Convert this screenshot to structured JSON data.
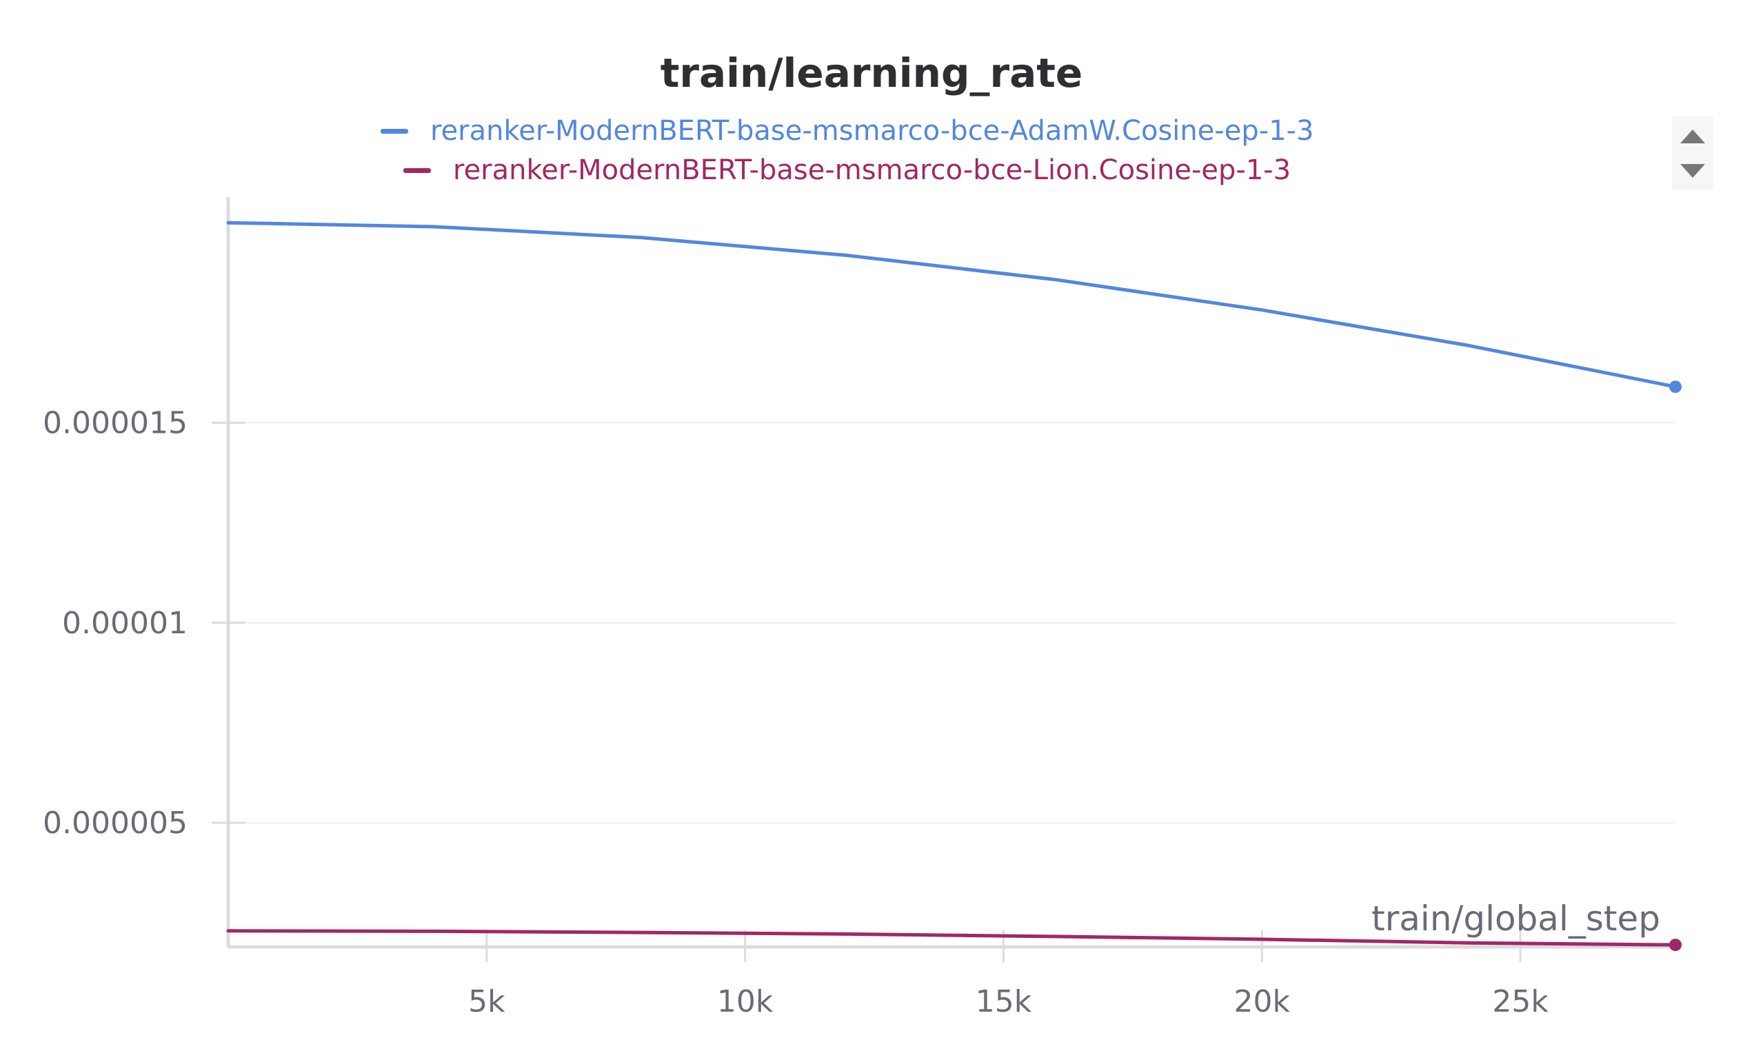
{
  "chart_data": {
    "type": "line",
    "title": "train/learning_rate",
    "xlabel": "train/global_step",
    "ylabel": "",
    "xlim": [
      0,
      28000
    ],
    "ylim": [
      1.9e-06,
      2.04e-05
    ],
    "x_ticks": [
      5000,
      10000,
      15000,
      20000,
      25000
    ],
    "x_tick_labels": [
      "5k",
      "10k",
      "15k",
      "20k",
      "25k"
    ],
    "y_ticks": [
      5e-06,
      1e-05,
      1.5e-05
    ],
    "y_tick_labels": [
      "0.000005",
      "0.00001",
      "0.000015"
    ],
    "grid": "horizontal",
    "legend_position": "top-center",
    "series": [
      {
        "name": "reranker-ModernBERT-base-msmarco-bce-AdamW.Cosine-ep-1-3",
        "color": "#5387DD",
        "x": [
          0,
          4000,
          8000,
          12000,
          16000,
          20000,
          24000,
          28000
        ],
        "y": [
          2e-05,
          1.99e-05,
          1.963e-05,
          1.918e-05,
          1.858e-05,
          1.782e-05,
          1.693e-05,
          1.59e-05
        ]
      },
      {
        "name": "reranker-ModernBERT-base-msmarco-bce-Lion.Cosine-ep-1-3",
        "color": "#A12864",
        "x": [
          0,
          4000,
          8000,
          12000,
          16000,
          20000,
          24000,
          28000
        ],
        "y": [
          2.3e-06,
          2.29e-06,
          2.26e-06,
          2.22e-06,
          2.16e-06,
          2.09e-06,
          2e-06,
          1.95e-06
        ]
      }
    ]
  }
}
